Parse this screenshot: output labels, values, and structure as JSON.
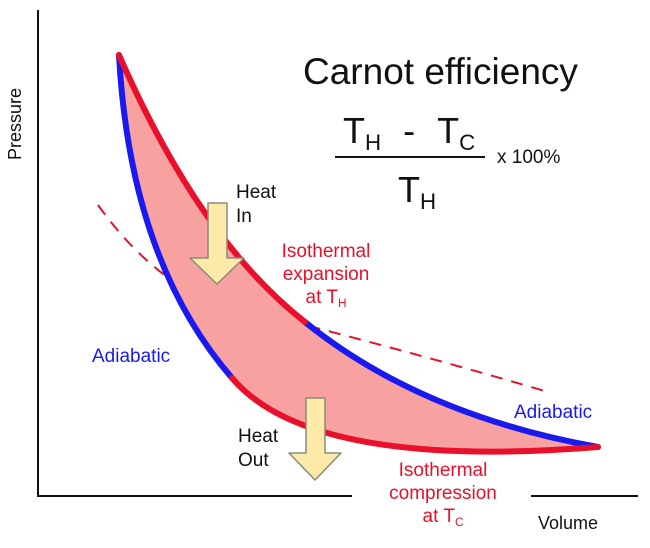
{
  "axes": {
    "y_label": "Pressure",
    "x_label": "Volume"
  },
  "formula": {
    "title": "Carnot efficiency",
    "numerator": {
      "hot": "T",
      "hot_sub": "H",
      "minus": "-",
      "cold": "T",
      "cold_sub": "C"
    },
    "denominator": {
      "symbol": "T",
      "sub": "H"
    },
    "multiplier": "x 100%"
  },
  "labels": {
    "heat_in": [
      "Heat",
      "In"
    ],
    "heat_out": [
      "Heat",
      "Out"
    ],
    "adiabatic_left": "Adiabatic",
    "adiabatic_right": "Adiabatic",
    "isothermal_expansion": {
      "line1": "Isothermal",
      "line2": "expansion",
      "line3": "at T",
      "sub": "H"
    },
    "isothermal_compression": {
      "line1": "Isothermal",
      "line2": "compression",
      "line3": "at T",
      "sub": "C"
    }
  },
  "colors": {
    "isotherm": "#e8102a",
    "adiabat": "#1a1aee",
    "cycle_fill": "#f7a1a1",
    "arrow_fill": "#fde9a8",
    "arrow_stroke": "#8a8a7a",
    "axis": "#111111"
  }
}
